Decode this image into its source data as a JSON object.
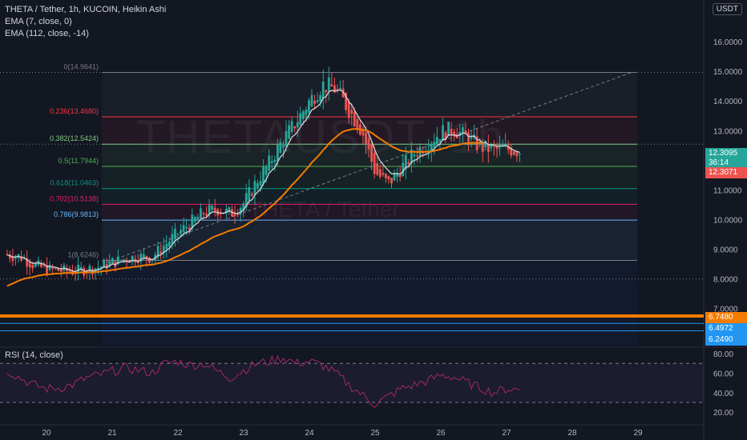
{
  "header": {
    "symbol_line": "THETA / Tether, 1h, KUCOIN, Heikin Ashi",
    "ema1": "EMA (7, close, 0)",
    "ema2": "EMA (112, close, -14)",
    "currency": "USDT"
  },
  "watermark": {
    "big": "THETAUSDT, 1h",
    "small": "THETA / Tether"
  },
  "rsi": {
    "label": "RSI (14, close)",
    "ticks": [
      "80.00",
      "60.00",
      "40.00",
      "20.00"
    ],
    "overbought": 70,
    "oversold": 30
  },
  "price_badges": {
    "last": "12.3095",
    "countdown": "36:14",
    "ema": "12.3071",
    "lvl1": "6.7480",
    "lvl2": "6.4972",
    "lvl3": "6.2490"
  },
  "colors": {
    "background": "#131722",
    "up": "#26a69a",
    "down": "#ef5350",
    "ema_fast": "#d1d4dc",
    "ema_slow": "#f57c00",
    "rsi": "#a4266a",
    "support_orange": "#f57c00",
    "support_blue": "#2962ff"
  },
  "chart_data": {
    "type": "candlestick",
    "title": "THETA / Tether, 1h, KUCOIN, Heikin Ashi",
    "x_ticks": [
      "20",
      "21",
      "22",
      "23",
      "24",
      "25",
      "26",
      "27",
      "28",
      "29"
    ],
    "y_ticks": [
      "16.0000",
      "15.0000",
      "14.0000",
      "13.0000",
      "12.0000",
      "11.0000",
      "10.0000",
      "9.0000",
      "8.0000",
      "7.0000"
    ],
    "ylim": [
      6.0,
      16.5
    ],
    "fib_levels": [
      {
        "label": "0(14.9641)",
        "value": 14.9641,
        "color": "#787b86"
      },
      {
        "label": "0.236(13.4680)",
        "value": 13.468,
        "color": "#f23645"
      },
      {
        "label": "0.382(12.5424)",
        "value": 12.5424,
        "color": "#81c784"
      },
      {
        "label": "0.5(11.7944)",
        "value": 11.7944,
        "color": "#4caf50"
      },
      {
        "label": "0.618(11.0463)",
        "value": 11.0463,
        "color": "#089981"
      },
      {
        "label": "0.702(10.5138)",
        "value": 10.5138,
        "color": "#e91e63"
      },
      {
        "label": "0.786(9.9813)",
        "value": 9.9813,
        "color": "#64b5f6"
      },
      {
        "label": "1(8.6246)",
        "value": 8.6246,
        "color": "#787b86"
      }
    ],
    "support_lines": [
      6.748,
      6.4972,
      6.249
    ],
    "series": [
      {
        "name": "THETA / Tether",
        "points": [
          [
            19.4,
            8.82
          ],
          [
            19.6,
            8.75
          ],
          [
            19.8,
            8.48
          ],
          [
            20.0,
            8.32
          ],
          [
            20.2,
            8.28
          ],
          [
            20.4,
            8.25
          ],
          [
            20.6,
            8.32
          ],
          [
            20.8,
            8.4
          ],
          [
            21.0,
            8.55
          ],
          [
            21.2,
            8.68
          ],
          [
            21.4,
            8.75
          ],
          [
            21.6,
            8.72
          ],
          [
            21.8,
            9.15
          ],
          [
            22.0,
            9.55
          ],
          [
            22.2,
            9.9
          ],
          [
            22.4,
            10.25
          ],
          [
            22.6,
            10.35
          ],
          [
            22.8,
            10.2
          ],
          [
            23.0,
            10.55
          ],
          [
            23.2,
            11.3
          ],
          [
            23.4,
            11.95
          ],
          [
            23.6,
            12.7
          ],
          [
            23.8,
            13.3
          ],
          [
            24.0,
            14.0
          ],
          [
            24.2,
            14.55
          ],
          [
            24.4,
            14.4
          ],
          [
            24.6,
            13.7
          ],
          [
            24.8,
            13.0
          ],
          [
            25.0,
            11.6
          ],
          [
            25.2,
            11.2
          ],
          [
            25.4,
            11.75
          ],
          [
            25.6,
            12.25
          ],
          [
            25.8,
            12.6
          ],
          [
            26.0,
            12.95
          ],
          [
            26.2,
            13.05
          ],
          [
            26.4,
            12.75
          ],
          [
            26.6,
            12.45
          ],
          [
            26.8,
            12.35
          ],
          [
            27.0,
            12.38
          ],
          [
            27.2,
            12.31
          ]
        ]
      }
    ],
    "rsi_values": [
      [
        19.4,
        63
      ],
      [
        19.6,
        55
      ],
      [
        19.8,
        48
      ],
      [
        20.0,
        44
      ],
      [
        20.2,
        45
      ],
      [
        20.4,
        48
      ],
      [
        20.6,
        55
      ],
      [
        20.8,
        58
      ],
      [
        21.0,
        62
      ],
      [
        21.2,
        65
      ],
      [
        21.4,
        63
      ],
      [
        21.6,
        60
      ],
      [
        21.8,
        70
      ],
      [
        22.0,
        72
      ],
      [
        22.2,
        68
      ],
      [
        22.4,
        70
      ],
      [
        22.6,
        62
      ],
      [
        22.8,
        55
      ],
      [
        23.0,
        63
      ],
      [
        23.2,
        70
      ],
      [
        23.4,
        72
      ],
      [
        23.6,
        76
      ],
      [
        23.8,
        70
      ],
      [
        24.0,
        72
      ],
      [
        24.2,
        68
      ],
      [
        24.4,
        60
      ],
      [
        24.6,
        48
      ],
      [
        24.8,
        38
      ],
      [
        25.0,
        28
      ],
      [
        25.2,
        36
      ],
      [
        25.4,
        44
      ],
      [
        25.6,
        48
      ],
      [
        25.8,
        52
      ],
      [
        26.0,
        58
      ],
      [
        26.2,
        56
      ],
      [
        26.4,
        50
      ],
      [
        26.6,
        45
      ],
      [
        26.8,
        40
      ],
      [
        27.0,
        44
      ],
      [
        27.2,
        43
      ]
    ]
  }
}
